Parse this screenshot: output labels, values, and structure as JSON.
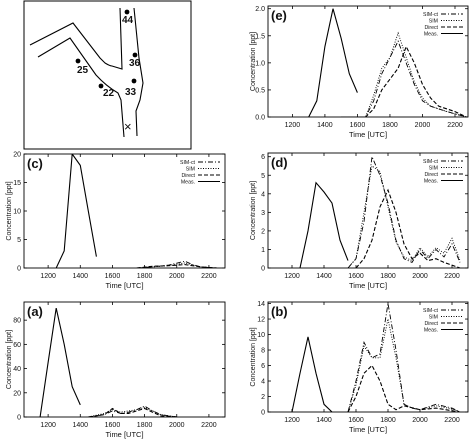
{
  "map": {
    "sites": [
      {
        "label": "44"
      },
      {
        "label": "36"
      },
      {
        "label": "25"
      },
      {
        "label": "22"
      },
      {
        "label": "33"
      }
    ],
    "source_symbol": "×"
  },
  "chart_data": [
    {
      "id": "e",
      "type": "line",
      "panel_label": "(e)",
      "xlabel": "Time [UTC]",
      "ylabel": "Concentration [ppt]",
      "xlim": [
        1050,
        2280
      ],
      "ylim": [
        0,
        2.05
      ],
      "xticks": [
        1200,
        1400,
        1600,
        1800,
        2000,
        2200
      ],
      "yticks": [
        0.0,
        0.5,
        1.0,
        1.5,
        2.0
      ],
      "ytick_labels": [
        "0.0",
        "0.5",
        "1.0",
        "1.5",
        "2.0"
      ],
      "legend": [
        "SIM-ct",
        "SIM",
        "Direct",
        "Meas."
      ],
      "series": [
        {
          "name": "SIM-ct",
          "style": "dashdot",
          "points": [
            [
              1500,
              0
            ],
            [
              1650,
              0
            ],
            [
              1700,
              0.3
            ],
            [
              1750,
              0.8
            ],
            [
              1800,
              1.1
            ],
            [
              1850,
              1.4
            ],
            [
              1900,
              1.0
            ],
            [
              1950,
              0.6
            ],
            [
              2000,
              0.3
            ],
            [
              2050,
              0.2
            ],
            [
              2150,
              0.1
            ],
            [
              2270,
              0
            ]
          ]
        },
        {
          "name": "SIM",
          "style": "dotted",
          "points": [
            [
              1500,
              0
            ],
            [
              1650,
              0
            ],
            [
              1700,
              0.4
            ],
            [
              1750,
              0.9
            ],
            [
              1800,
              1.1
            ],
            [
              1850,
              1.55
            ],
            [
              1900,
              1.1
            ],
            [
              1950,
              0.65
            ],
            [
              2000,
              0.35
            ],
            [
              2050,
              0.2
            ],
            [
              2150,
              0.1
            ],
            [
              2270,
              0
            ]
          ]
        },
        {
          "name": "Direct",
          "style": "dashed",
          "points": [
            [
              1500,
              0
            ],
            [
              1650,
              0
            ],
            [
              1700,
              0.15
            ],
            [
              1750,
              0.5
            ],
            [
              1800,
              0.7
            ],
            [
              1850,
              0.9
            ],
            [
              1900,
              1.3
            ],
            [
              1950,
              1.0
            ],
            [
              2000,
              0.6
            ],
            [
              2050,
              0.35
            ],
            [
              2100,
              0.2
            ],
            [
              2200,
              0.1
            ],
            [
              2270,
              0
            ]
          ]
        },
        {
          "name": "Meas.",
          "style": "solid",
          "points": [
            [
              1300,
              0
            ],
            [
              1350,
              0.3
            ],
            [
              1400,
              1.3
            ],
            [
              1450,
              2.0
            ],
            [
              1500,
              1.45
            ],
            [
              1550,
              0.8
            ],
            [
              1600,
              0.45
            ]
          ]
        }
      ]
    },
    {
      "id": "c",
      "type": "line",
      "panel_label": "(c)",
      "xlabel": "Time [UTC]",
      "ylabel": "Concentration [ppt]",
      "xlim": [
        1050,
        2300
      ],
      "ylim": [
        0,
        20
      ],
      "xticks": [
        1200,
        1400,
        1600,
        1800,
        2000,
        2200
      ],
      "yticks": [
        0,
        5,
        10,
        15,
        20
      ],
      "ytick_labels": [
        "0",
        "5",
        "10",
        "15",
        "20"
      ],
      "legend": [
        "SIM-ct",
        "SIM",
        "Direct",
        "Meas."
      ],
      "series": [
        {
          "name": "SIM-ct",
          "style": "dashdot",
          "points": [
            [
              1750,
              0
            ],
            [
              1850,
              0.2
            ],
            [
              1950,
              0.5
            ],
            [
              2050,
              1.2
            ],
            [
              2100,
              0.6
            ],
            [
              2150,
              0.2
            ],
            [
              2250,
              0
            ]
          ]
        },
        {
          "name": "SIM",
          "style": "dotted",
          "points": [
            [
              1750,
              0
            ],
            [
              1850,
              0.2
            ],
            [
              1950,
              0.4
            ],
            [
              2050,
              0.9
            ],
            [
              2100,
              0.5
            ],
            [
              2150,
              0.2
            ],
            [
              2250,
              0
            ]
          ]
        },
        {
          "name": "Direct",
          "style": "dashed",
          "points": [
            [
              1750,
              0
            ],
            [
              1850,
              0.3
            ],
            [
              1950,
              0.4
            ],
            [
              2050,
              0.6
            ],
            [
              2150,
              0.2
            ],
            [
              2250,
              0
            ]
          ]
        },
        {
          "name": "Meas.",
          "style": "solid",
          "points": [
            [
              1250,
              0
            ],
            [
              1300,
              3
            ],
            [
              1350,
              20
            ],
            [
              1400,
              18
            ],
            [
              1450,
              10
            ],
            [
              1500,
              2
            ]
          ]
        }
      ]
    },
    {
      "id": "d",
      "type": "line",
      "panel_label": "(d)",
      "xlabel": "Time [UTC]",
      "ylabel": "Concentration [ppt]",
      "xlim": [
        1050,
        2300
      ],
      "ylim": [
        0,
        6.2
      ],
      "xticks": [
        1200,
        1400,
        1600,
        1800,
        2000,
        2200
      ],
      "yticks": [
        0,
        1,
        2,
        3,
        4,
        5,
        6
      ],
      "ytick_labels": [
        "0",
        "1",
        "2",
        "3",
        "4",
        "5",
        "6"
      ],
      "legend": [
        "SIM-ct",
        "SIM",
        "Direct",
        "Meas."
      ],
      "series": [
        {
          "name": "SIM-ct",
          "style": "dashdot",
          "points": [
            [
              1550,
              0
            ],
            [
              1600,
              0.5
            ],
            [
              1650,
              2.5
            ],
            [
              1700,
              6.0
            ],
            [
              1750,
              5.0
            ],
            [
              1800,
              3.5
            ],
            [
              1850,
              1.5
            ],
            [
              1900,
              0.5
            ],
            [
              1950,
              0.3
            ],
            [
              2000,
              1.0
            ],
            [
              2050,
              0.5
            ],
            [
              2100,
              1.0
            ],
            [
              2150,
              0.6
            ],
            [
              2200,
              1.3
            ],
            [
              2250,
              0.3
            ]
          ]
        },
        {
          "name": "SIM",
          "style": "dotted",
          "points": [
            [
              1550,
              0
            ],
            [
              1600,
              0.5
            ],
            [
              1650,
              3.0
            ],
            [
              1700,
              5.5
            ],
            [
              1750,
              5.2
            ],
            [
              1800,
              3.3
            ],
            [
              1850,
              1.4
            ],
            [
              1900,
              0.6
            ],
            [
              1950,
              0.4
            ],
            [
              2000,
              1.1
            ],
            [
              2050,
              0.6
            ],
            [
              2100,
              1.1
            ],
            [
              2150,
              0.8
            ],
            [
              2200,
              1.6
            ],
            [
              2250,
              0.4
            ]
          ]
        },
        {
          "name": "Direct",
          "style": "dashed",
          "points": [
            [
              1600,
              0
            ],
            [
              1650,
              0.5
            ],
            [
              1700,
              1.5
            ],
            [
              1750,
              3.3
            ],
            [
              1800,
              4.2
            ],
            [
              1850,
              3.0
            ],
            [
              1900,
              1.3
            ],
            [
              1950,
              0.5
            ],
            [
              2000,
              0.8
            ],
            [
              2050,
              0.4
            ],
            [
              2100,
              0.5
            ],
            [
              2150,
              0.3
            ],
            [
              2250,
              0
            ]
          ]
        },
        {
          "name": "Meas.",
          "style": "solid",
          "points": [
            [
              1250,
              0
            ],
            [
              1300,
              2.0
            ],
            [
              1350,
              4.6
            ],
            [
              1400,
              4.1
            ],
            [
              1450,
              3.5
            ],
            [
              1500,
              1.5
            ],
            [
              1550,
              0.4
            ]
          ]
        }
      ]
    },
    {
      "id": "a",
      "type": "line",
      "panel_label": "(a)",
      "xlabel": "Time [UTC]",
      "ylabel": "Concentration [ppt]",
      "xlim": [
        1050,
        2300
      ],
      "ylim": [
        0,
        95
      ],
      "xticks": [
        1200,
        1400,
        1600,
        1800,
        2000,
        2200
      ],
      "yticks": [
        0,
        20,
        40,
        60,
        80
      ],
      "ytick_labels": [
        "0",
        "20",
        "40",
        "60",
        "80"
      ],
      "legend": [],
      "series": [
        {
          "name": "SIM-ct",
          "style": "dashdot",
          "points": [
            [
              1450,
              0
            ],
            [
              1550,
              2
            ],
            [
              1600,
              5
            ],
            [
              1650,
              3
            ],
            [
              1700,
              4
            ],
            [
              1750,
              6
            ],
            [
              1800,
              9
            ],
            [
              1850,
              5
            ],
            [
              1900,
              2
            ],
            [
              2000,
              0
            ]
          ]
        },
        {
          "name": "SIM",
          "style": "dotted",
          "points": [
            [
              1450,
              0
            ],
            [
              1550,
              3
            ],
            [
              1600,
              6
            ],
            [
              1650,
              4
            ],
            [
              1700,
              5
            ],
            [
              1750,
              6
            ],
            [
              1800,
              8
            ],
            [
              1850,
              5
            ],
            [
              1900,
              2
            ],
            [
              2000,
              0
            ]
          ]
        },
        {
          "name": "Direct",
          "style": "dashed",
          "points": [
            [
              1450,
              0
            ],
            [
              1550,
              2
            ],
            [
              1600,
              7
            ],
            [
              1650,
              3
            ],
            [
              1700,
              3
            ],
            [
              1750,
              5
            ],
            [
              1800,
              7
            ],
            [
              1850,
              4
            ],
            [
              1900,
              1
            ],
            [
              2000,
              0
            ]
          ]
        },
        {
          "name": "Meas.",
          "style": "solid",
          "points": [
            [
              1150,
              0
            ],
            [
              1200,
              45
            ],
            [
              1250,
              90
            ],
            [
              1300,
              60
            ],
            [
              1350,
              25
            ],
            [
              1400,
              10
            ]
          ]
        }
      ]
    },
    {
      "id": "b",
      "type": "line",
      "panel_label": "(b)",
      "xlabel": "Time [UTC]",
      "ylabel": "Concentration [ppt]",
      "xlim": [
        1050,
        2300
      ],
      "ylim": [
        0,
        14.2
      ],
      "xticks": [
        1200,
        1400,
        1600,
        1800,
        2000,
        2200
      ],
      "yticks": [
        0,
        2,
        4,
        6,
        8,
        10,
        12,
        14
      ],
      "ytick_labels": [
        "0",
        "2",
        "4",
        "6",
        "8",
        "10",
        "12",
        "14"
      ],
      "legend": [
        "SIM-ct",
        "SIM",
        "Direct",
        "Meas."
      ],
      "series": [
        {
          "name": "SIM-ct",
          "style": "dashdot",
          "points": [
            [
              1550,
              0
            ],
            [
              1600,
              4
            ],
            [
              1650,
              9
            ],
            [
              1700,
              7
            ],
            [
              1750,
              7.5
            ],
            [
              1800,
              14
            ],
            [
              1850,
              8
            ],
            [
              1900,
              1
            ],
            [
              1950,
              0.5
            ],
            [
              2000,
              0.3
            ],
            [
              2100,
              1
            ],
            [
              2200,
              0.5
            ],
            [
              2250,
              0
            ]
          ]
        },
        {
          "name": "SIM",
          "style": "dotted",
          "points": [
            [
              1550,
              0
            ],
            [
              1600,
              3.5
            ],
            [
              1650,
              8.5
            ],
            [
              1700,
              7
            ],
            [
              1750,
              7
            ],
            [
              1800,
              12
            ],
            [
              1850,
              7
            ],
            [
              1900,
              1
            ],
            [
              1950,
              0.5
            ],
            [
              2000,
              0.3
            ],
            [
              2100,
              0.8
            ],
            [
              2200,
              0.4
            ],
            [
              2250,
              0
            ]
          ]
        },
        {
          "name": "Direct",
          "style": "dashed",
          "points": [
            [
              1550,
              0
            ],
            [
              1600,
              2
            ],
            [
              1650,
              5
            ],
            [
              1700,
              6
            ],
            [
              1750,
              4
            ],
            [
              1800,
              1
            ],
            [
              1850,
              0.3
            ],
            [
              1900,
              0.8
            ],
            [
              2000,
              0.3
            ],
            [
              2100,
              0.5
            ],
            [
              2250,
              0
            ]
          ]
        },
        {
          "name": "Meas.",
          "style": "solid",
          "points": [
            [
              1200,
              0
            ],
            [
              1250,
              5
            ],
            [
              1300,
              9.7
            ],
            [
              1350,
              5
            ],
            [
              1400,
              1
            ],
            [
              1450,
              0
            ]
          ]
        }
      ]
    }
  ]
}
